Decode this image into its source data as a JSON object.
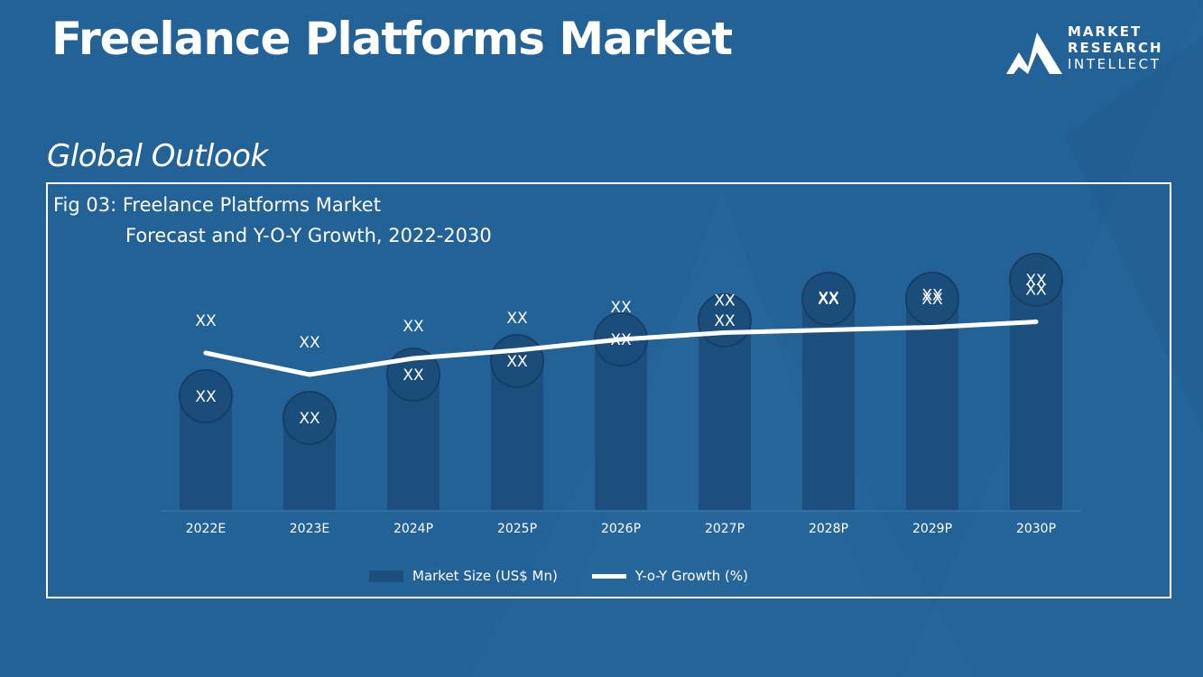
{
  "header": {
    "title": "Freelance Platforms Market",
    "logo_lines": [
      "MARKET",
      "RESEARCH",
      "INTELLECT"
    ]
  },
  "section": {
    "heading": "Global Outlook"
  },
  "colors": {
    "background": "#236296",
    "bar": "#1c4f7e",
    "bubble": "#1b4d7a",
    "line": "#ffffff",
    "text": "#ffffff"
  },
  "chart_data": {
    "type": "bar",
    "title": "Fig 03: Freelance Platforms Market",
    "subtitle": "Forecast and Y-O-Y Growth, 2022-2030",
    "categories": [
      "2022E",
      "2023E",
      "2024P",
      "2025P",
      "2026P",
      "2027P",
      "2028P",
      "2029P",
      "2030P"
    ],
    "series": [
      {
        "name": "Market Size (US$ Mn)",
        "type": "bar",
        "values": [
          42,
          34,
          50,
          55,
          63,
          70,
          78,
          78,
          85
        ],
        "labels": [
          "XX",
          "XX",
          "XX",
          "XX",
          "XX",
          "XX",
          "XX",
          "XX",
          "XX"
        ]
      },
      {
        "name": "Y-o-Y Growth (%)",
        "type": "line",
        "values": [
          58,
          50,
          56,
          59,
          63,
          65.5,
          66.5,
          67.5,
          69.5
        ],
        "labels": [
          "XX",
          "XX",
          "XX",
          "XX",
          "XX",
          "XX",
          "XX",
          "XX",
          "XX"
        ]
      }
    ],
    "ylim": [
      0,
      100
    ],
    "legend_position": "bottom",
    "grid": false
  }
}
